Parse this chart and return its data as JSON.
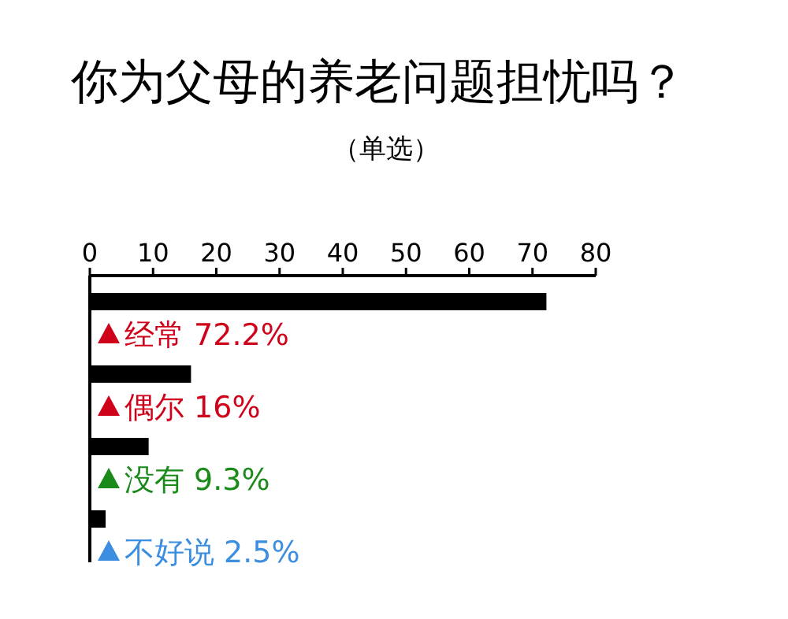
{
  "chart_data": {
    "type": "bar",
    "orientation": "horizontal",
    "title": "你为父母的养老问题担忧吗？",
    "subtitle": "（单选）",
    "categories": [
      "经常",
      "偶尔",
      "没有",
      "不好说"
    ],
    "values": [
      72.2,
      16,
      9.3,
      2.5
    ],
    "value_labels": [
      "72.2%",
      "16%",
      "9.3%",
      "2.5%"
    ],
    "color": "#000000",
    "xlim": [
      0,
      80
    ],
    "xticks": [
      0,
      10,
      20,
      30,
      40,
      50,
      60,
      70,
      80
    ]
  }
}
